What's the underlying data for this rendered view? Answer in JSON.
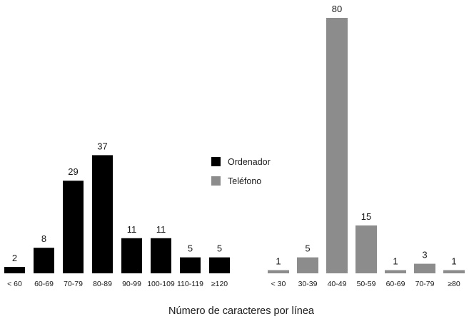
{
  "chart_data": [
    {
      "type": "bar",
      "series": [
        {
          "name": "Ordenador",
          "color": "#000000",
          "categories": [
            "< 60",
            "60-69",
            "70-79",
            "80-89",
            "90-99",
            "100-109",
            "110-119",
            "≥120"
          ],
          "values": [
            2,
            8,
            29,
            37,
            11,
            11,
            5,
            5
          ]
        },
        {
          "name": "Teléfono",
          "color": "#8c8c8c",
          "categories": [
            "< 30",
            "30-39",
            "40-49",
            "50-59",
            "60-69",
            "70-79",
            "≥80"
          ],
          "values": [
            1,
            5,
            80,
            15,
            1,
            3,
            1
          ]
        }
      ],
      "xlabel": "Número de caracteres por línea",
      "ylabel": "",
      "ylim": [
        0,
        80
      ],
      "grid": false,
      "legend": "center",
      "data_labels": true
    }
  ]
}
